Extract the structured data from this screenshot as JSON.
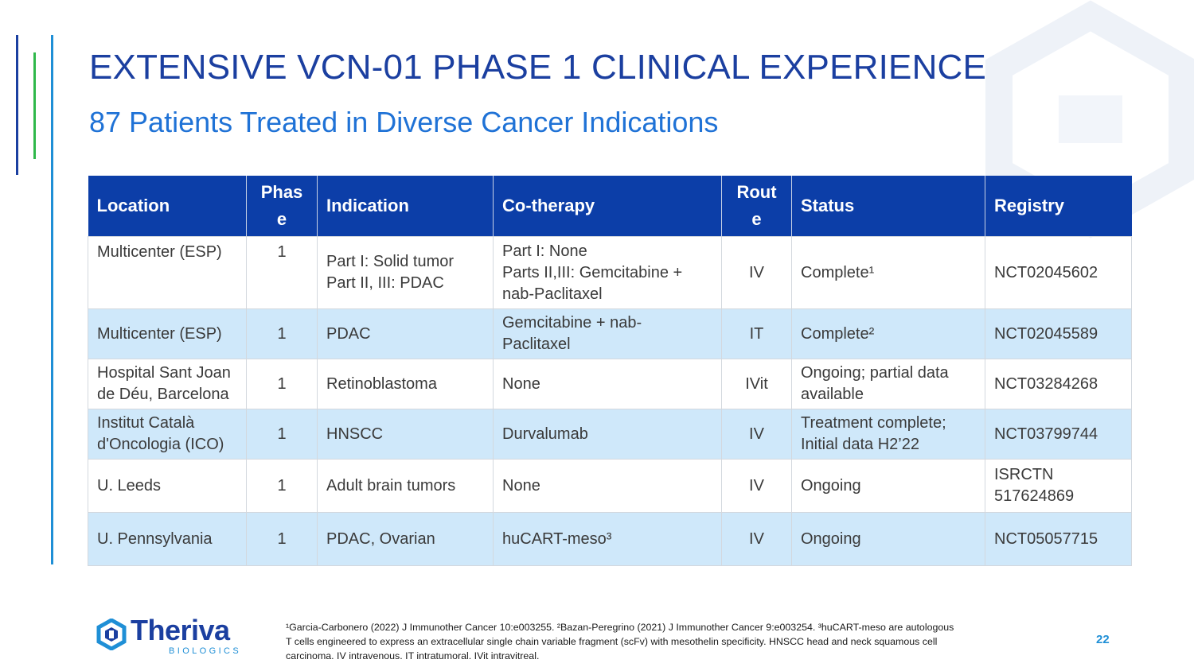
{
  "slide": {
    "title": "EXTENSIVE VCN-01 PHASE 1 CLINICAL EXPERIENCE",
    "subtitle": "87 Patients Treated in Diverse Cancer Indications",
    "page_number": "22"
  },
  "table": {
    "headers": {
      "location": "Location",
      "phase": [
        "Phas",
        "e"
      ],
      "indication": "Indication",
      "cotherapy": "Co-therapy",
      "route": [
        "Rout",
        "e"
      ],
      "status": "Status",
      "registry": "Registry"
    },
    "rows": [
      {
        "location": [
          "Multicenter (ESP)"
        ],
        "phase": "1",
        "indication": [
          "Part I: Solid tumor",
          "Part II, III: PDAC"
        ],
        "cotherapy": [
          "Part I: None",
          "Parts II,III: Gemcitabine +",
          "nab-Paclitaxel"
        ],
        "route": "IV",
        "status": [
          "Complete¹"
        ],
        "registry": [
          "NCT02045602"
        ]
      },
      {
        "location": [
          "Multicenter (ESP)"
        ],
        "phase": "1",
        "indication": [
          "PDAC"
        ],
        "cotherapy": [
          "Gemcitabine + nab-",
          "Paclitaxel"
        ],
        "route": "IT",
        "status": [
          "Complete²"
        ],
        "registry": [
          "NCT02045589"
        ]
      },
      {
        "location": [
          "Hospital Sant Joan",
          "de Déu, Barcelona"
        ],
        "phase": "1",
        "indication": [
          "Retinoblastoma"
        ],
        "cotherapy": [
          "None"
        ],
        "route": "IVit",
        "status": [
          "Ongoing; partial data",
          "available"
        ],
        "registry": [
          "NCT03284268"
        ]
      },
      {
        "location": [
          "Institut Català",
          "d'Oncologia (ICO)"
        ],
        "phase": "1",
        "indication": [
          "HNSCC"
        ],
        "cotherapy": [
          "Durvalumab"
        ],
        "route": "IV",
        "status": [
          "Treatment complete;",
          "Initial data H2’22"
        ],
        "registry": [
          "NCT03799744"
        ]
      },
      {
        "location": [
          "U. Leeds"
        ],
        "phase": "1",
        "indication": [
          "Adult brain tumors"
        ],
        "cotherapy": [
          "None"
        ],
        "route": "IV",
        "status": [
          "Ongoing"
        ],
        "registry": [
          "ISRCTN",
          "517624869"
        ]
      },
      {
        "location": [
          "U. Pennsylvania"
        ],
        "phase": "1",
        "indication": [
          "PDAC, Ovarian"
        ],
        "cotherapy": [
          "huCART-meso³"
        ],
        "route": "IV",
        "status": [
          "Ongoing"
        ],
        "registry": [
          "NCT05057715"
        ]
      }
    ]
  },
  "logo": {
    "name": "Theriva",
    "tagline": "BIOLOGICS"
  },
  "footnote": {
    "lines": [
      "¹Garcia-Carbonero (2022) J Immunother Cancer 10:e003255. ²Bazan-Peregrino (2021) J Immunother Cancer 9:e003254. ³huCART-meso are autologous",
      "T cells engineered to express an extracellular single chain variable fragment (scFv) with mesothelin specificity. HNSCC head and neck squamous cell",
      "carcinoma. IV intravenous. IT intratumoral. IVit intravitreal."
    ]
  },
  "colors": {
    "title": "#1b3fa0",
    "subtitle": "#1f72d6",
    "header_bg": "#0c3ea8",
    "alt_row_bg": "#cfe8fa",
    "accent_green": "#2fb84a",
    "accent_blue": "#1f8fd6"
  },
  "icons": {
    "watermark": "hexagon-watermark-icon",
    "logo_mark": "theriva-hexagon-logo-icon"
  }
}
